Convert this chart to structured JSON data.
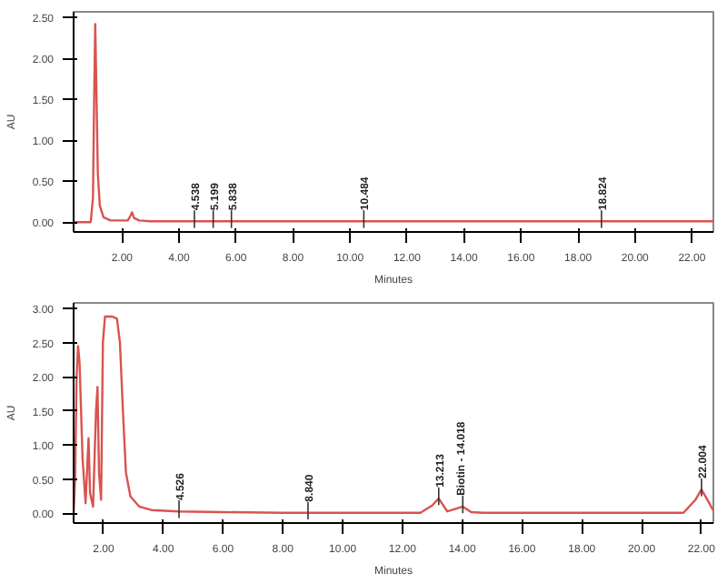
{
  "chart_data": [
    {
      "type": "line",
      "xlabel": "Minutes",
      "ylabel": "AU",
      "xlim": [
        0.3,
        22.75
      ],
      "ylim": [
        -0.12,
        2.57
      ],
      "xticks": [
        {
          "value": 2,
          "label": "2.00"
        },
        {
          "value": 4,
          "label": "4.00"
        },
        {
          "value": 6,
          "label": "6.00"
        },
        {
          "value": 8,
          "label": "8.00"
        },
        {
          "value": 10,
          "label": "10.00"
        },
        {
          "value": 12,
          "label": "12.00"
        },
        {
          "value": 14,
          "label": "14.00"
        },
        {
          "value": 16,
          "label": "16.00"
        },
        {
          "value": 18,
          "label": "18.00"
        },
        {
          "value": 20,
          "label": "20.00"
        },
        {
          "value": 22,
          "label": "22.00"
        }
      ],
      "yticks": [
        {
          "value": 0,
          "label": "0.00"
        },
        {
          "value": 0.5,
          "label": "0.50"
        },
        {
          "value": 1,
          "label": "1.00"
        },
        {
          "value": 1.5,
          "label": "1.50"
        },
        {
          "value": 2,
          "label": "2.00"
        },
        {
          "value": 2.5,
          "label": "2.50"
        }
      ],
      "grid": false,
      "series": [
        {
          "color": "#d9534f",
          "x": [
            0.3,
            0.9,
            0.98,
            1.02,
            1.06,
            1.1,
            1.15,
            1.22,
            1.35,
            1.6,
            2.2,
            2.3,
            2.35,
            2.42,
            2.6,
            3,
            22.75
          ],
          "values": [
            0,
            0,
            0.3,
            1.5,
            2.42,
            1.6,
            0.6,
            0.2,
            0.06,
            0.02,
            0.02,
            0.08,
            0.12,
            0.05,
            0.02,
            0.01,
            0.01
          ]
        }
      ],
      "annotations": [
        {
          "text": "4.538",
          "x": 4.538,
          "y": 0.01
        },
        {
          "text": "5.199",
          "x": 5.199,
          "y": 0.01
        },
        {
          "text": "5.838",
          "x": 5.838,
          "y": 0.01
        },
        {
          "text": "10.484",
          "x": 10.484,
          "y": 0.01
        },
        {
          "text": "18.824",
          "x": 18.824,
          "y": 0.01
        }
      ]
    },
    {
      "type": "line",
      "xlabel": "Minutes",
      "ylabel": "AU",
      "xlim": [
        1.0,
        22.4
      ],
      "ylim": [
        -0.14,
        3.08
      ],
      "xticks": [
        {
          "value": 2,
          "label": "2.00"
        },
        {
          "value": 4,
          "label": "4.00"
        },
        {
          "value": 6,
          "label": "6.00"
        },
        {
          "value": 8,
          "label": "8.00"
        },
        {
          "value": 10,
          "label": "10.00"
        },
        {
          "value": 12,
          "label": "12.00"
        },
        {
          "value": 14,
          "label": "14.00"
        },
        {
          "value": 16,
          "label": "16.00"
        },
        {
          "value": 18,
          "label": "18.00"
        },
        {
          "value": 20,
          "label": "20.00"
        },
        {
          "value": 22,
          "label": "22.00"
        }
      ],
      "yticks": [
        {
          "value": 0,
          "label": "0.00"
        },
        {
          "value": 0.5,
          "label": "0.50"
        },
        {
          "value": 1,
          "label": "1.00"
        },
        {
          "value": 1.5,
          "label": "1.50"
        },
        {
          "value": 2,
          "label": "2.00"
        },
        {
          "value": 2.5,
          "label": "2.50"
        },
        {
          "value": 3,
          "label": "3.00"
        }
      ],
      "grid": false,
      "series": [
        {
          "color": "#d9534f",
          "x": [
            1.0,
            1.05,
            1.1,
            1.15,
            1.2,
            1.3,
            1.4,
            1.5,
            1.55,
            1.65,
            1.75,
            1.8,
            1.85,
            1.92,
            1.98,
            2.05,
            2.3,
            2.45,
            2.55,
            2.65,
            2.75,
            2.9,
            3.2,
            3.6,
            4.5,
            6,
            8,
            12.6,
            13.0,
            13.21,
            13.5,
            13.8,
            14.02,
            14.3,
            14.7,
            21.4,
            21.8,
            22.0,
            22.2,
            22.4
          ],
          "values": [
            0,
            0.5,
            2.0,
            2.45,
            2.2,
            0.8,
            0.15,
            1.1,
            0.3,
            0.1,
            1.5,
            1.85,
            0.6,
            0.2,
            2.5,
            2.88,
            2.88,
            2.85,
            2.5,
            1.5,
            0.6,
            0.25,
            0.1,
            0.05,
            0.03,
            0.02,
            0.01,
            0.01,
            0.12,
            0.22,
            0.03,
            0.07,
            0.1,
            0.02,
            0.01,
            0.01,
            0.2,
            0.35,
            0.2,
            0.04
          ]
        }
      ],
      "annotations": [
        {
          "text": "4.526",
          "x": 4.526,
          "y": 0.03
        },
        {
          "text": "8.840",
          "x": 8.84,
          "y": 0.01
        },
        {
          "text": "13.213",
          "x": 13.213,
          "y": 0.22
        },
        {
          "text": "Biotin - 14.018",
          "x": 14.018,
          "y": 0.1
        },
        {
          "text": "22.004",
          "x": 22.004,
          "y": 0.35
        }
      ]
    }
  ]
}
